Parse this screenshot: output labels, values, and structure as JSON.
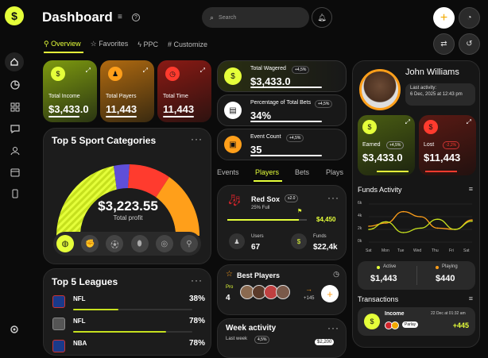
{
  "header": {
    "title": "Dashboard",
    "search_placeholder": "Search"
  },
  "tabs": [
    "Overview",
    "Favorites",
    "PPC",
    "Customize"
  ],
  "stats": [
    {
      "label": "Total Income",
      "value": "$3,433.0"
    },
    {
      "label": "Total Payers",
      "value": "11,443"
    },
    {
      "label": "Total Time",
      "value": "11,443"
    }
  ],
  "sport_categories": {
    "title": "Top 5 Sport Categories",
    "value": "$3,223.55",
    "caption": "Total profit"
  },
  "leagues": {
    "title": "Top 5 Leagues",
    "items": [
      {
        "name": "NFL",
        "pct": "38%",
        "fill": 0.38
      },
      {
        "name": "NFL",
        "pct": "78%",
        "fill": 0.78
      },
      {
        "name": "NBA",
        "pct": "78%",
        "fill": 0.78
      }
    ]
  },
  "mid_stats": [
    {
      "label": "Total Wagered",
      "value": "$3,433.0",
      "badge": "+4,5%"
    },
    {
      "label": "Percentage of Total Bets",
      "value": "34%",
      "badge": "+4,5%"
    },
    {
      "label": "Event Count",
      "value": "35",
      "badge": "+4,5%"
    }
  ],
  "mid_tabs": [
    "Events",
    "Players",
    "Bets",
    "Plays"
  ],
  "team": {
    "name": "Red Sox",
    "badge": "x2.0",
    "full": "25% Full",
    "amount": "$4,450",
    "users_label": "Users",
    "users_value": "67",
    "funds_label": "Funds",
    "funds_value": "$22,4k"
  },
  "best_players": {
    "title": "Best Players",
    "pro_label": "Pro",
    "pro_value": "4",
    "more": "+145"
  },
  "week_activity": {
    "title": "Week activity",
    "last_week": "Last week",
    "badge": "4,5%",
    "value": "$2,200"
  },
  "profile": {
    "name": "John Williams",
    "activity_label": "Last activity:",
    "activity_date": "6 Dec, 2025 at 12:43 pm"
  },
  "earned": {
    "label": "Earned",
    "badge": "+4,5%",
    "value": "$3,433.0"
  },
  "lost": {
    "label": "Lost",
    "badge": "-2,2%",
    "value": "$11,443"
  },
  "funds_activity": {
    "title": "Funds Activity",
    "ylabels": [
      "6k",
      "4k",
      "2k",
      "0k"
    ],
    "days": [
      "Sat",
      "Mon",
      "Tue",
      "Wed",
      "Thu",
      "Fri",
      "Sat"
    ]
  },
  "active": {
    "label": "Active",
    "value": "$1,443"
  },
  "playing": {
    "label": "Playing",
    "value": "$440"
  },
  "transactions": {
    "title": "Transactions",
    "item_title": "Income",
    "date": "22 Dec at 01:32 am",
    "tag": "Parlay",
    "amount": "+445"
  },
  "chart_data": {
    "type": "line",
    "title": "Funds Activity",
    "x": [
      "Sat",
      "Mon",
      "Tue",
      "Wed",
      "Thu",
      "Fri",
      "Sat"
    ],
    "ylim": [
      0,
      6
    ],
    "series": [
      {
        "color": "#ff9f1a",
        "values": [
          2.5,
          3.0,
          4.8,
          4.0,
          2.2,
          2.0,
          3.5
        ]
      },
      {
        "color": "#c6e01e",
        "values": [
          2.0,
          3.2,
          1.5,
          2.2,
          3.6,
          2.0,
          3.3
        ]
      }
    ]
  }
}
